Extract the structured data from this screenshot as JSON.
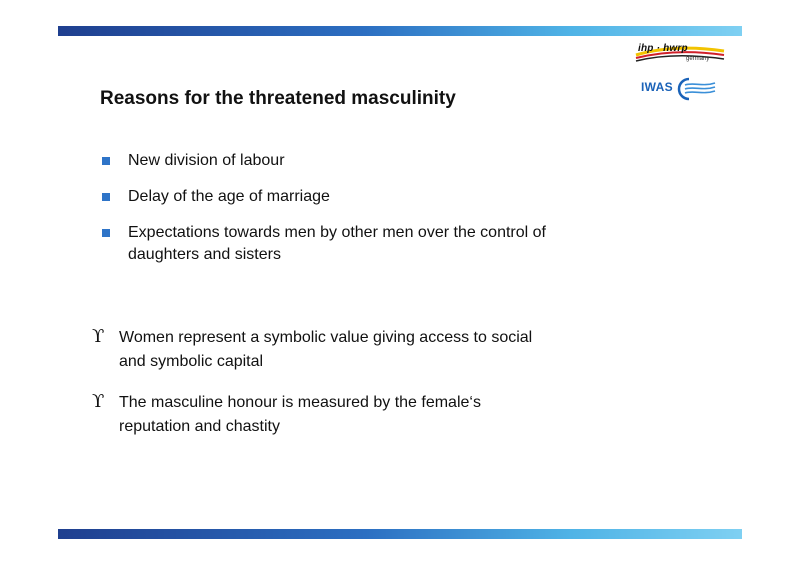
{
  "logos": {
    "ihp_text": "ihp · hwrp",
    "ihp_sub": "germany",
    "iwas_text": "IWAS"
  },
  "title": "Reasons for the threatened masculinity",
  "square_bullets": [
    {
      "marker": "■",
      "lines": [
        "New division of labour"
      ]
    },
    {
      "marker": "■",
      "lines": [
        "Delay of the age of marriage"
      ]
    },
    {
      "marker": "■",
      "lines": [
        "Expectations towards men by other men over the control of",
        "daughters and sisters"
      ]
    }
  ],
  "upsilon_bullets": [
    {
      "marker": "ϒ",
      "lines": [
        "Women represent a symbolic value giving access to social",
        "and symbolic capital"
      ]
    },
    {
      "marker": "ϒ",
      "lines": [
        "The masculine honour is measured by the female‘s",
        "reputation and chastity"
      ]
    }
  ],
  "colors": {
    "bar_dark": "#1f3f8f",
    "bar_light": "#7fd0f2",
    "bullet_blue": "#2e74c8",
    "iwas_blue": "#1a62b8"
  }
}
